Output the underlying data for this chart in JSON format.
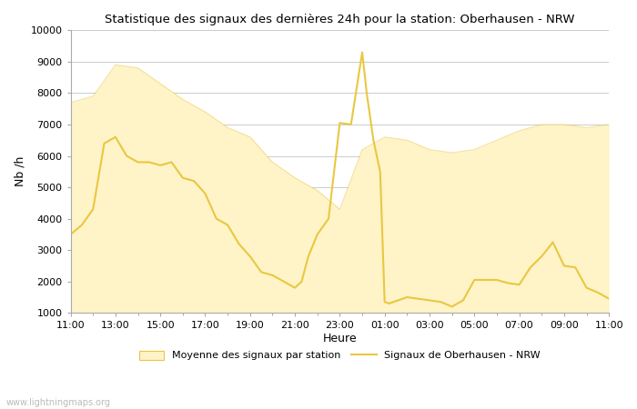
{
  "title": "Statistique des signaux des dernières 24h pour la station: Oberhausen - NRW",
  "xlabel": "Heure",
  "ylabel": "Nb /h",
  "watermark": "www.lightningmaps.org",
  "ylim": [
    1000,
    10000
  ],
  "yticks": [
    1000,
    2000,
    3000,
    4000,
    5000,
    6000,
    7000,
    8000,
    9000,
    10000
  ],
  "xtick_labels": [
    "11:00",
    "13:00",
    "15:00",
    "17:00",
    "19:00",
    "21:00",
    "23:00",
    "01:00",
    "03:00",
    "05:00",
    "07:00",
    "09:00",
    "11:00"
  ],
  "bg_color": "#ffffff",
  "plot_bg_color": "#ffffff",
  "grid_color": "#cccccc",
  "fill_color": "#FFF3C8",
  "fill_edge_color": "#E8C840",
  "line_color": "#E8C840",
  "legend_fill_label": "Moyenne des signaux par station",
  "legend_line_label": "Signaux de Oberhausen - NRW",
  "avg_x": [
    0,
    1,
    2,
    3,
    4,
    5,
    6,
    7,
    8,
    9,
    10,
    11,
    12,
    13,
    14,
    15,
    16,
    17,
    18,
    19,
    20,
    21,
    22,
    23,
    24
  ],
  "avg_y": [
    7700,
    7900,
    8900,
    8800,
    8300,
    7800,
    7400,
    6900,
    6600,
    5800,
    5300,
    4900,
    4300,
    6200,
    6600,
    6500,
    6200,
    6100,
    6200,
    6500,
    6800,
    7000,
    7000,
    6900,
    7000
  ],
  "stn_x": [
    0,
    0.5,
    1,
    1.5,
    2,
    2.5,
    3,
    3.5,
    4,
    4.5,
    5,
    5.5,
    6,
    6.5,
    7,
    7.5,
    8,
    8.5,
    9,
    9.5,
    10,
    10.3,
    10.6,
    11,
    11.5,
    12,
    12.5,
    13,
    13.2,
    13.5,
    13.8,
    14,
    14.2,
    15,
    15.5,
    16,
    16.5,
    17,
    17.5,
    18,
    18.5,
    19,
    19.5,
    20,
    20.5,
    21,
    21.5,
    22,
    22.5,
    23,
    23.5,
    24
  ],
  "stn_y": [
    3500,
    3800,
    4300,
    6400,
    6600,
    6000,
    5800,
    5800,
    5700,
    5800,
    5300,
    5200,
    4800,
    4000,
    3800,
    3200,
    2800,
    2300,
    2200,
    2000,
    1800,
    2000,
    2800,
    3500,
    4000,
    7050,
    7000,
    9300,
    8000,
    6500,
    5500,
    1350,
    1300,
    1500,
    1450,
    1400,
    1350,
    1200,
    1400,
    2050,
    2050,
    2050,
    1950,
    1900,
    2450,
    2800,
    3250,
    2500,
    2450,
    1800,
    1650,
    1450
  ]
}
